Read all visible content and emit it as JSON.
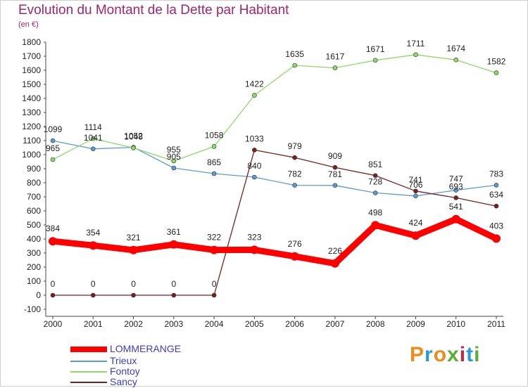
{
  "header": {
    "title": "Evolution du Montant de la Dette par Habitant",
    "subtitle": "(en €)"
  },
  "logo": {
    "text": "Proxiti",
    "colors": [
      "#f08a1c",
      "#2a9ad6",
      "#f08a1c",
      "#58b030",
      "#c8263c",
      "#2a9ad6",
      "#58b030"
    ]
  },
  "chart_data": {
    "type": "line",
    "title": "Evolution du Montant de la Dette par Habitant",
    "ylabel": "(en €)",
    "xlabel": "",
    "categories": [
      "2000",
      "2001",
      "2002",
      "2003",
      "2004",
      "2005",
      "2006",
      "2007",
      "2008",
      "2009",
      "2010",
      "2011"
    ],
    "ylim": [
      -100,
      1800
    ],
    "yticks": [
      -100,
      0,
      100,
      200,
      300,
      400,
      500,
      600,
      700,
      800,
      900,
      1000,
      1100,
      1200,
      1300,
      1400,
      1500,
      1600,
      1700,
      1800
    ],
    "grid": false,
    "legend_position": "bottom-left",
    "series": [
      {
        "name": "LOMMERANGE",
        "color": "#ff0000",
        "values": [
          384,
          354,
          321,
          361,
          322,
          323,
          276,
          226,
          498,
          424,
          541,
          403
        ]
      },
      {
        "name": "Trieux",
        "color": "#5a9bd4",
        "values": [
          1099,
          1041,
          1052,
          905,
          865,
          840,
          782,
          781,
          728,
          706,
          747,
          783
        ]
      },
      {
        "name": "Fontoy",
        "color": "#8fd869",
        "values": [
          965,
          1114,
          1048,
          955,
          1058,
          1422,
          1635,
          1617,
          1671,
          1711,
          1674,
          1582
        ]
      },
      {
        "name": "Sancy",
        "color": "#7a2020",
        "values": [
          0,
          0,
          0,
          0,
          0,
          1033,
          979,
          909,
          851,
          741,
          693,
          634
        ]
      }
    ]
  }
}
